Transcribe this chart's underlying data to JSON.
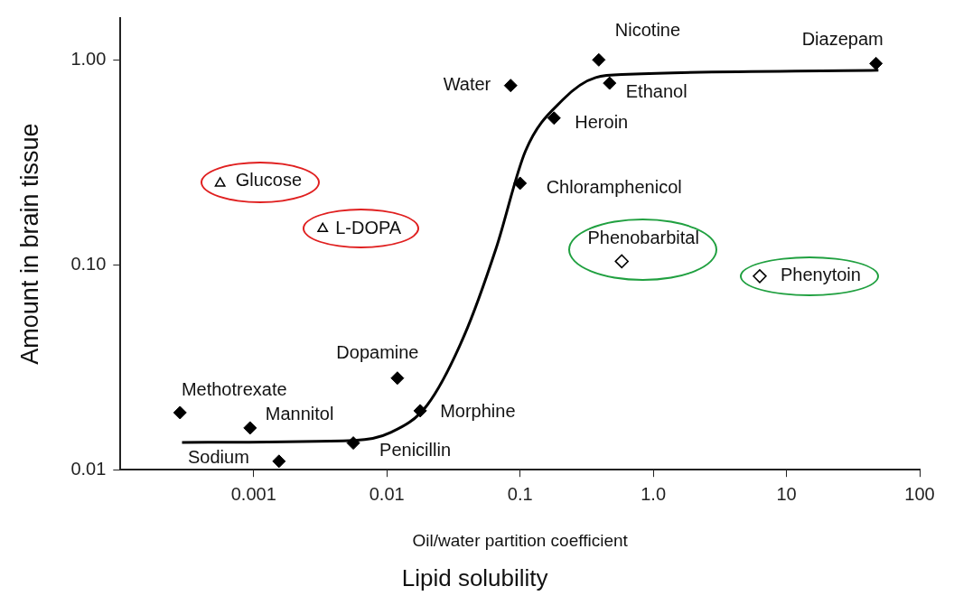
{
  "chart_data": {
    "type": "scatter",
    "xlabel": "Oil/water partition coefficient",
    "ylabel": "Amount in brain tissue",
    "log": "xy",
    "grid": false,
    "legend": false,
    "xlim": [
      0.0001,
      100
    ],
    "ylim": [
      0.01,
      1.6
    ],
    "xticks": [
      0.001,
      0.01,
      0.1,
      {
        "value": 1,
        "label": "1.0"
      },
      10,
      100
    ],
    "yticks": [
      {
        "value": 0.01,
        "label": "0.01"
      },
      {
        "value": 0.1,
        "label": "0.10"
      },
      {
        "value": 1,
        "label": "1.00"
      }
    ],
    "series": [
      {
        "marker": "diamond",
        "color": "#000000",
        "x": [
          47,
          0.39,
          0.085,
          0.47,
          0.18,
          0.1,
          0.012,
          0.00028,
          0.00094,
          0.0178,
          0.0056,
          0.00155
        ],
        "values": [
          0.96,
          1.0,
          0.75,
          0.77,
          0.52,
          0.25,
          0.028,
          0.019,
          0.016,
          0.0194,
          0.0135,
          0.011
        ]
      },
      {
        "marker": "triangle",
        "color": "#000000",
        "x": [
          0.00056,
          0.0033
        ],
        "values": [
          0.25,
          0.15
        ]
      },
      {
        "marker": "diamond",
        "color": "#000000",
        "x": [
          0.58,
          6.3
        ],
        "values": [
          0.104,
          0.088
        ]
      },
      {
        "type": "line",
        "marker": "none",
        "color": "#000000",
        "x": [
          0.00029,
          0.0057,
          0.0107,
          0.02,
          0.038,
          0.066,
          0.11,
          0.21,
          0.37,
          0.65,
          49
        ],
        "values": [
          0.0136,
          0.0139,
          0.0152,
          0.0206,
          0.045,
          0.12,
          0.36,
          0.64,
          0.82,
          0.85,
          0.89
        ]
      }
    ],
    "annotations": [
      {
        "text": "Diazepam",
        "x": 47,
        "y": 0.96
      },
      {
        "text": "Nicotine",
        "x": 0.39,
        "y": 1.0
      },
      {
        "text": "Water",
        "x": 0.085,
        "y": 0.75
      },
      {
        "text": "Ethanol",
        "x": 0.47,
        "y": 0.77
      },
      {
        "text": "Heroin",
        "x": 0.18,
        "y": 0.52
      },
      {
        "text": "Chloramphenicol",
        "x": 0.1,
        "y": 0.25
      },
      {
        "text": "Phenobarbital",
        "x": 0.58,
        "y": 0.104
      },
      {
        "text": "Phenytoin",
        "x": 6.3,
        "y": 0.088
      },
      {
        "text": "Glucose",
        "x": 0.00056,
        "y": 0.25
      },
      {
        "text": "L-DOPA",
        "x": 0.0033,
        "y": 0.15
      },
      {
        "text": "Dopamine",
        "x": 0.012,
        "y": 0.028
      },
      {
        "text": "Methotrexate",
        "x": 0.00028,
        "y": 0.019
      },
      {
        "text": "Mannitol",
        "x": 0.00094,
        "y": 0.016
      },
      {
        "text": "Morphine",
        "x": 0.0178,
        "y": 0.0194
      },
      {
        "text": "Penicillin",
        "x": 0.0056,
        "y": 0.0135
      },
      {
        "text": "Sodium",
        "x": 0.00155,
        "y": 0.011
      },
      "Lipid solubility"
    ]
  }
}
